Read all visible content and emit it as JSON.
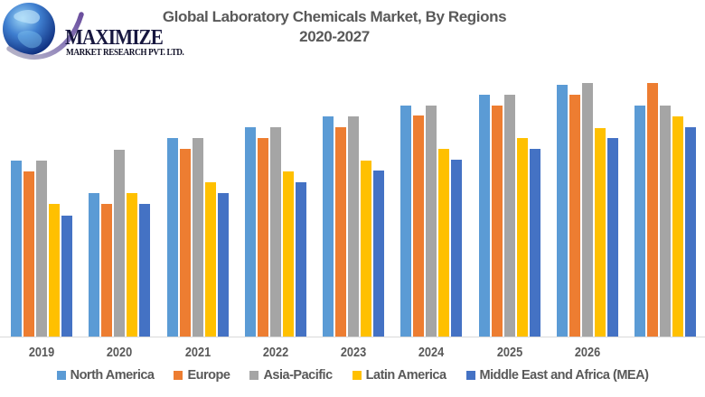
{
  "logo": {
    "name": "MAXIMIZE",
    "subtitle": "MARKET RESEARCH PVT. LTD.",
    "globe_icon": "globe-with-swoosh",
    "colors": {
      "globe_deep_blue": "#0c2a7a",
      "globe_light_blue": "#9fd8f7",
      "swoosh_purple": "#7a5fa8",
      "text_navy": "#17173f"
    }
  },
  "chart": {
    "title_line1": "Global Laboratory Chemicals Market, By Regions",
    "title_line2": "2020-2027"
  },
  "chart_data": {
    "type": "bar",
    "title": "Global Laboratory Chemicals Market, By Regions 2020-2027",
    "categories": [
      "2019",
      "2020",
      "2021",
      "2022",
      "2023",
      "2024",
      "2025",
      "2026",
      ""
    ],
    "note": "No y-axis, gridlines or data labels are shown; values are relative bar heights (pixels) read from the image. Ninth bar group at far right has no category label.",
    "series": [
      {
        "name": "North America",
        "color": "#5B9BD5",
        "values": [
          195,
          159,
          220,
          232,
          244,
          256,
          268,
          279,
          256
        ]
      },
      {
        "name": "Europe",
        "color": "#ED7D31",
        "values": [
          183,
          147,
          208,
          220,
          232,
          245,
          256,
          268,
          281
        ]
      },
      {
        "name": "Asia-Pacific",
        "color": "#A5A5A5",
        "values": [
          195,
          207,
          220,
          232,
          244,
          256,
          268,
          281,
          256
        ]
      },
      {
        "name": "Latin America",
        "color": "#FFC000",
        "values": [
          147,
          159,
          171,
          183,
          195,
          208,
          220,
          231,
          244
        ]
      },
      {
        "name": "Middle East and Africa (MEA)",
        "color": "#4472C4",
        "values": [
          134,
          147,
          159,
          171,
          184,
          196,
          208,
          220,
          232
        ]
      }
    ],
    "ylim": [
      0,
      300
    ],
    "xlabel": "",
    "ylabel": "",
    "gridlines": false,
    "legend_position": "bottom",
    "axis_line_color": "#d9d9d9",
    "text_color": "#595959"
  }
}
